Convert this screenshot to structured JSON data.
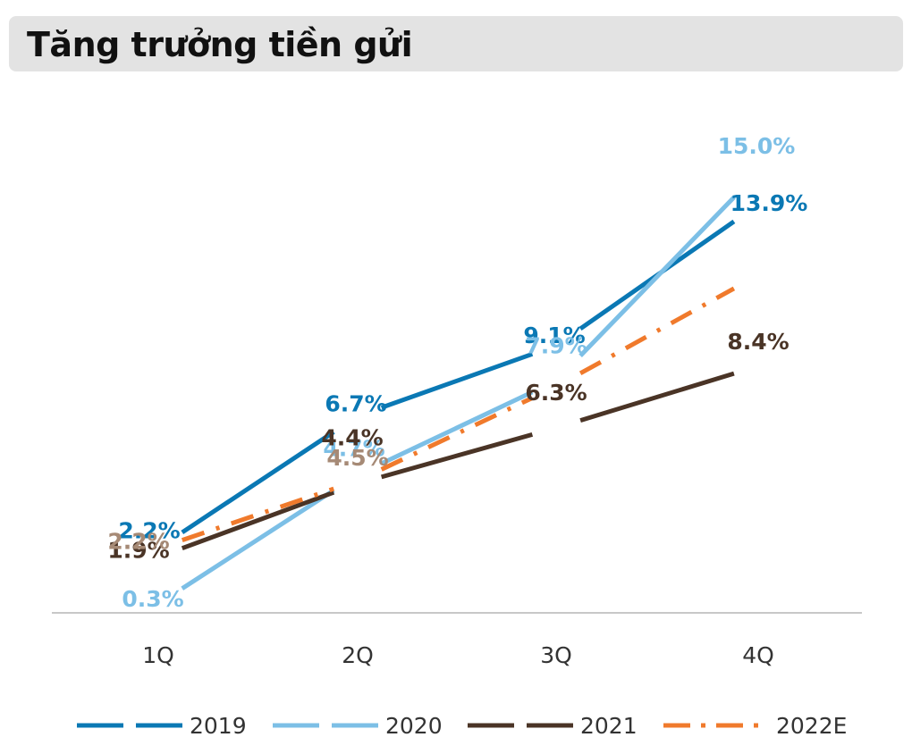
{
  "title": "Tăng trưởng tiền gửi",
  "chart_data": {
    "type": "line",
    "title": "Tăng trưởng tiền gửi",
    "categories": [
      "1Q",
      "2Q",
      "3Q",
      "4Q"
    ],
    "ylabel": "",
    "xlabel": "",
    "ylim": [
      0,
      16
    ],
    "grid": false,
    "legend_position": "bottom",
    "series": [
      {
        "name": "2019",
        "values": [
          2.2,
          6.7,
          9.1,
          13.9
        ],
        "labels": [
          "2.2%",
          "6.7%",
          "9.1%",
          "13.9%"
        ],
        "color": "#0a78b4",
        "label_color": "#0a78b4",
        "dash": "long"
      },
      {
        "name": "2020",
        "values": [
          0.3,
          4.7,
          7.9,
          15.0
        ],
        "labels": [
          "0.3%",
          "4.7%",
          "7.9%",
          "15.0%"
        ],
        "color": "#7cbfe6",
        "label_color": "#7cbfe6",
        "dash": "long"
      },
      {
        "name": "2021",
        "values": [
          1.9,
          4.4,
          6.3,
          8.4
        ],
        "labels": [
          "1.9%",
          "4.4%",
          "6.3%",
          "8.4%"
        ],
        "color": "#4a3426",
        "label_color": "#4a3426",
        "dash": "long"
      },
      {
        "name": "2022E",
        "values": [
          2.2,
          4.5,
          7.7,
          11.5
        ],
        "labels": [
          "2.2%",
          "4.5%",
          "",
          ""
        ],
        "color": "#f07a2c",
        "label_color": "#a68a76",
        "dash": "dashdot"
      }
    ]
  }
}
